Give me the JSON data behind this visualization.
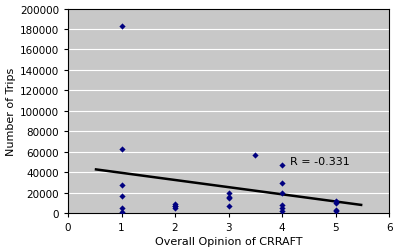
{
  "scatter_x": [
    1,
    1,
    1,
    1,
    1,
    1,
    2,
    2,
    2,
    2,
    3,
    3,
    3,
    3,
    3.5,
    4,
    4,
    4,
    4,
    4,
    4,
    5,
    5,
    5,
    5
  ],
  "scatter_y": [
    183000,
    63000,
    28000,
    17000,
    5000,
    1000,
    9000,
    7000,
    5000,
    7000,
    16000,
    7000,
    15000,
    20000,
    57000,
    30000,
    20000,
    8000,
    5000,
    2000,
    47000,
    12000,
    3000,
    2000,
    10000
  ],
  "trend_x": [
    0.5,
    5.5
  ],
  "trend_y": [
    43000,
    8000
  ],
  "r_value": "R = -0.331",
  "r_x": 4.15,
  "r_y": 48000,
  "xlabel": "Overall Opinion of CRRAFT",
  "ylabel": "Number of Trips",
  "xlim": [
    0,
    6
  ],
  "ylim": [
    0,
    200000
  ],
  "yticks": [
    0,
    20000,
    40000,
    60000,
    80000,
    100000,
    120000,
    140000,
    160000,
    180000,
    200000
  ],
  "xticks": [
    0,
    1,
    2,
    3,
    4,
    5,
    6
  ],
  "scatter_color": "#000080",
  "trend_color": "#000000",
  "bg_color": "#C8C8C8",
  "fig_color": "#ffffff",
  "label_fontsize": 8,
  "tick_fontsize": 7.5,
  "annotation_fontsize": 8
}
